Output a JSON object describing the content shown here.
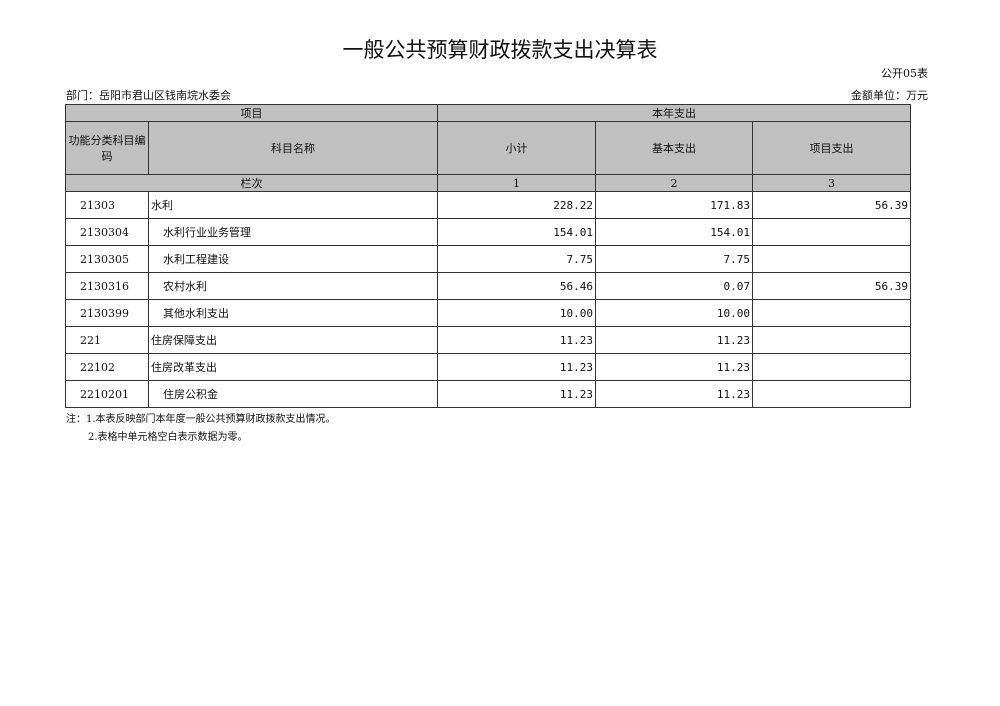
{
  "title": "一般公共预算财政拨款支出决算表",
  "form_no": "公开05表",
  "department": "部门：岳阳市君山区钱南垸水委会",
  "unit": "金额单位：万元",
  "header": {
    "item": "项目",
    "current_year": "本年支出",
    "code": "功能分类科目编码",
    "name": "科目名称",
    "subtotal": "小计",
    "basic": "基本支出",
    "project": "项目支出",
    "row_index": "栏次",
    "col1": "1",
    "col2": "2",
    "col3": "3"
  },
  "rows": [
    {
      "code": "21303",
      "name": "水利",
      "subtotal": "228.22",
      "basic": "171.83",
      "project": "56.39",
      "indent": false
    },
    {
      "code": "2130304",
      "name": "水利行业业务管理",
      "subtotal": "154.01",
      "basic": "154.01",
      "project": "",
      "indent": true
    },
    {
      "code": "2130305",
      "name": "水利工程建设",
      "subtotal": "7.75",
      "basic": "7.75",
      "project": "",
      "indent": true
    },
    {
      "code": "2130316",
      "name": "农村水利",
      "subtotal": "56.46",
      "basic": "0.07",
      "project": "56.39",
      "indent": true
    },
    {
      "code": "2130399",
      "name": "其他水利支出",
      "subtotal": "10.00",
      "basic": "10.00",
      "project": "",
      "indent": true
    },
    {
      "code": "221",
      "name": "住房保障支出",
      "subtotal": "11.23",
      "basic": "11.23",
      "project": "",
      "indent": false
    },
    {
      "code": "22102",
      "name": "住房改革支出",
      "subtotal": "11.23",
      "basic": "11.23",
      "project": "",
      "indent": false
    },
    {
      "code": "2210201",
      "name": "住房公积金",
      "subtotal": "11.23",
      "basic": "11.23",
      "project": "",
      "indent": true
    }
  ],
  "notes": [
    "注：1.本表反映部门本年度一般公共预算财政拨款支出情况。",
    "2.表格中单元格空白表示数据为零。"
  ]
}
